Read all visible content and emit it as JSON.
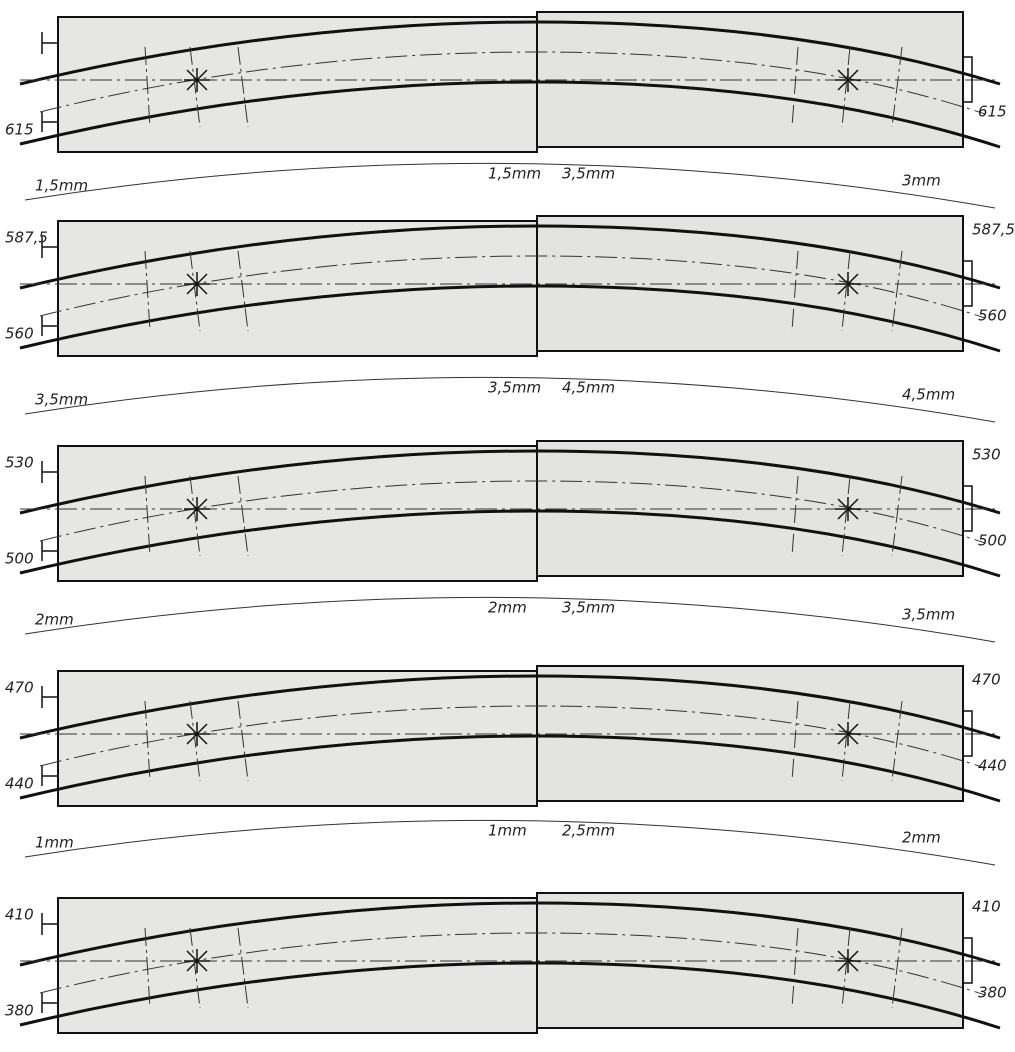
{
  "panels": [
    {
      "left_bottom": "615",
      "right_bottom": "615"
    },
    {
      "left_top": "587,5",
      "left_bottom": "560",
      "right_top": "587,5",
      "right_bottom": "560"
    },
    {
      "left_top": "530",
      "left_bottom": "500",
      "right_top": "530",
      "right_bottom": "500"
    },
    {
      "left_top": "470",
      "left_bottom": "440",
      "right_top": "470",
      "right_bottom": "440"
    },
    {
      "left_top": "410",
      "left_bottom": "380",
      "right_top": "410",
      "right_bottom": "380"
    }
  ],
  "gaps": [
    {
      "left": "1,5mm",
      "center_left": "1,5mm",
      "center_right": "3,5mm",
      "right": "3mm"
    },
    {
      "left": "3,5mm",
      "center_left": "3,5mm",
      "center_right": "4,5mm",
      "right": "4,5mm"
    },
    {
      "left": "2mm",
      "center_left": "2mm",
      "center_right": "3,5mm",
      "right": "3,5mm"
    },
    {
      "left": "1mm",
      "center_left": "1mm",
      "center_right": "2,5mm",
      "right": "2mm"
    }
  ]
}
